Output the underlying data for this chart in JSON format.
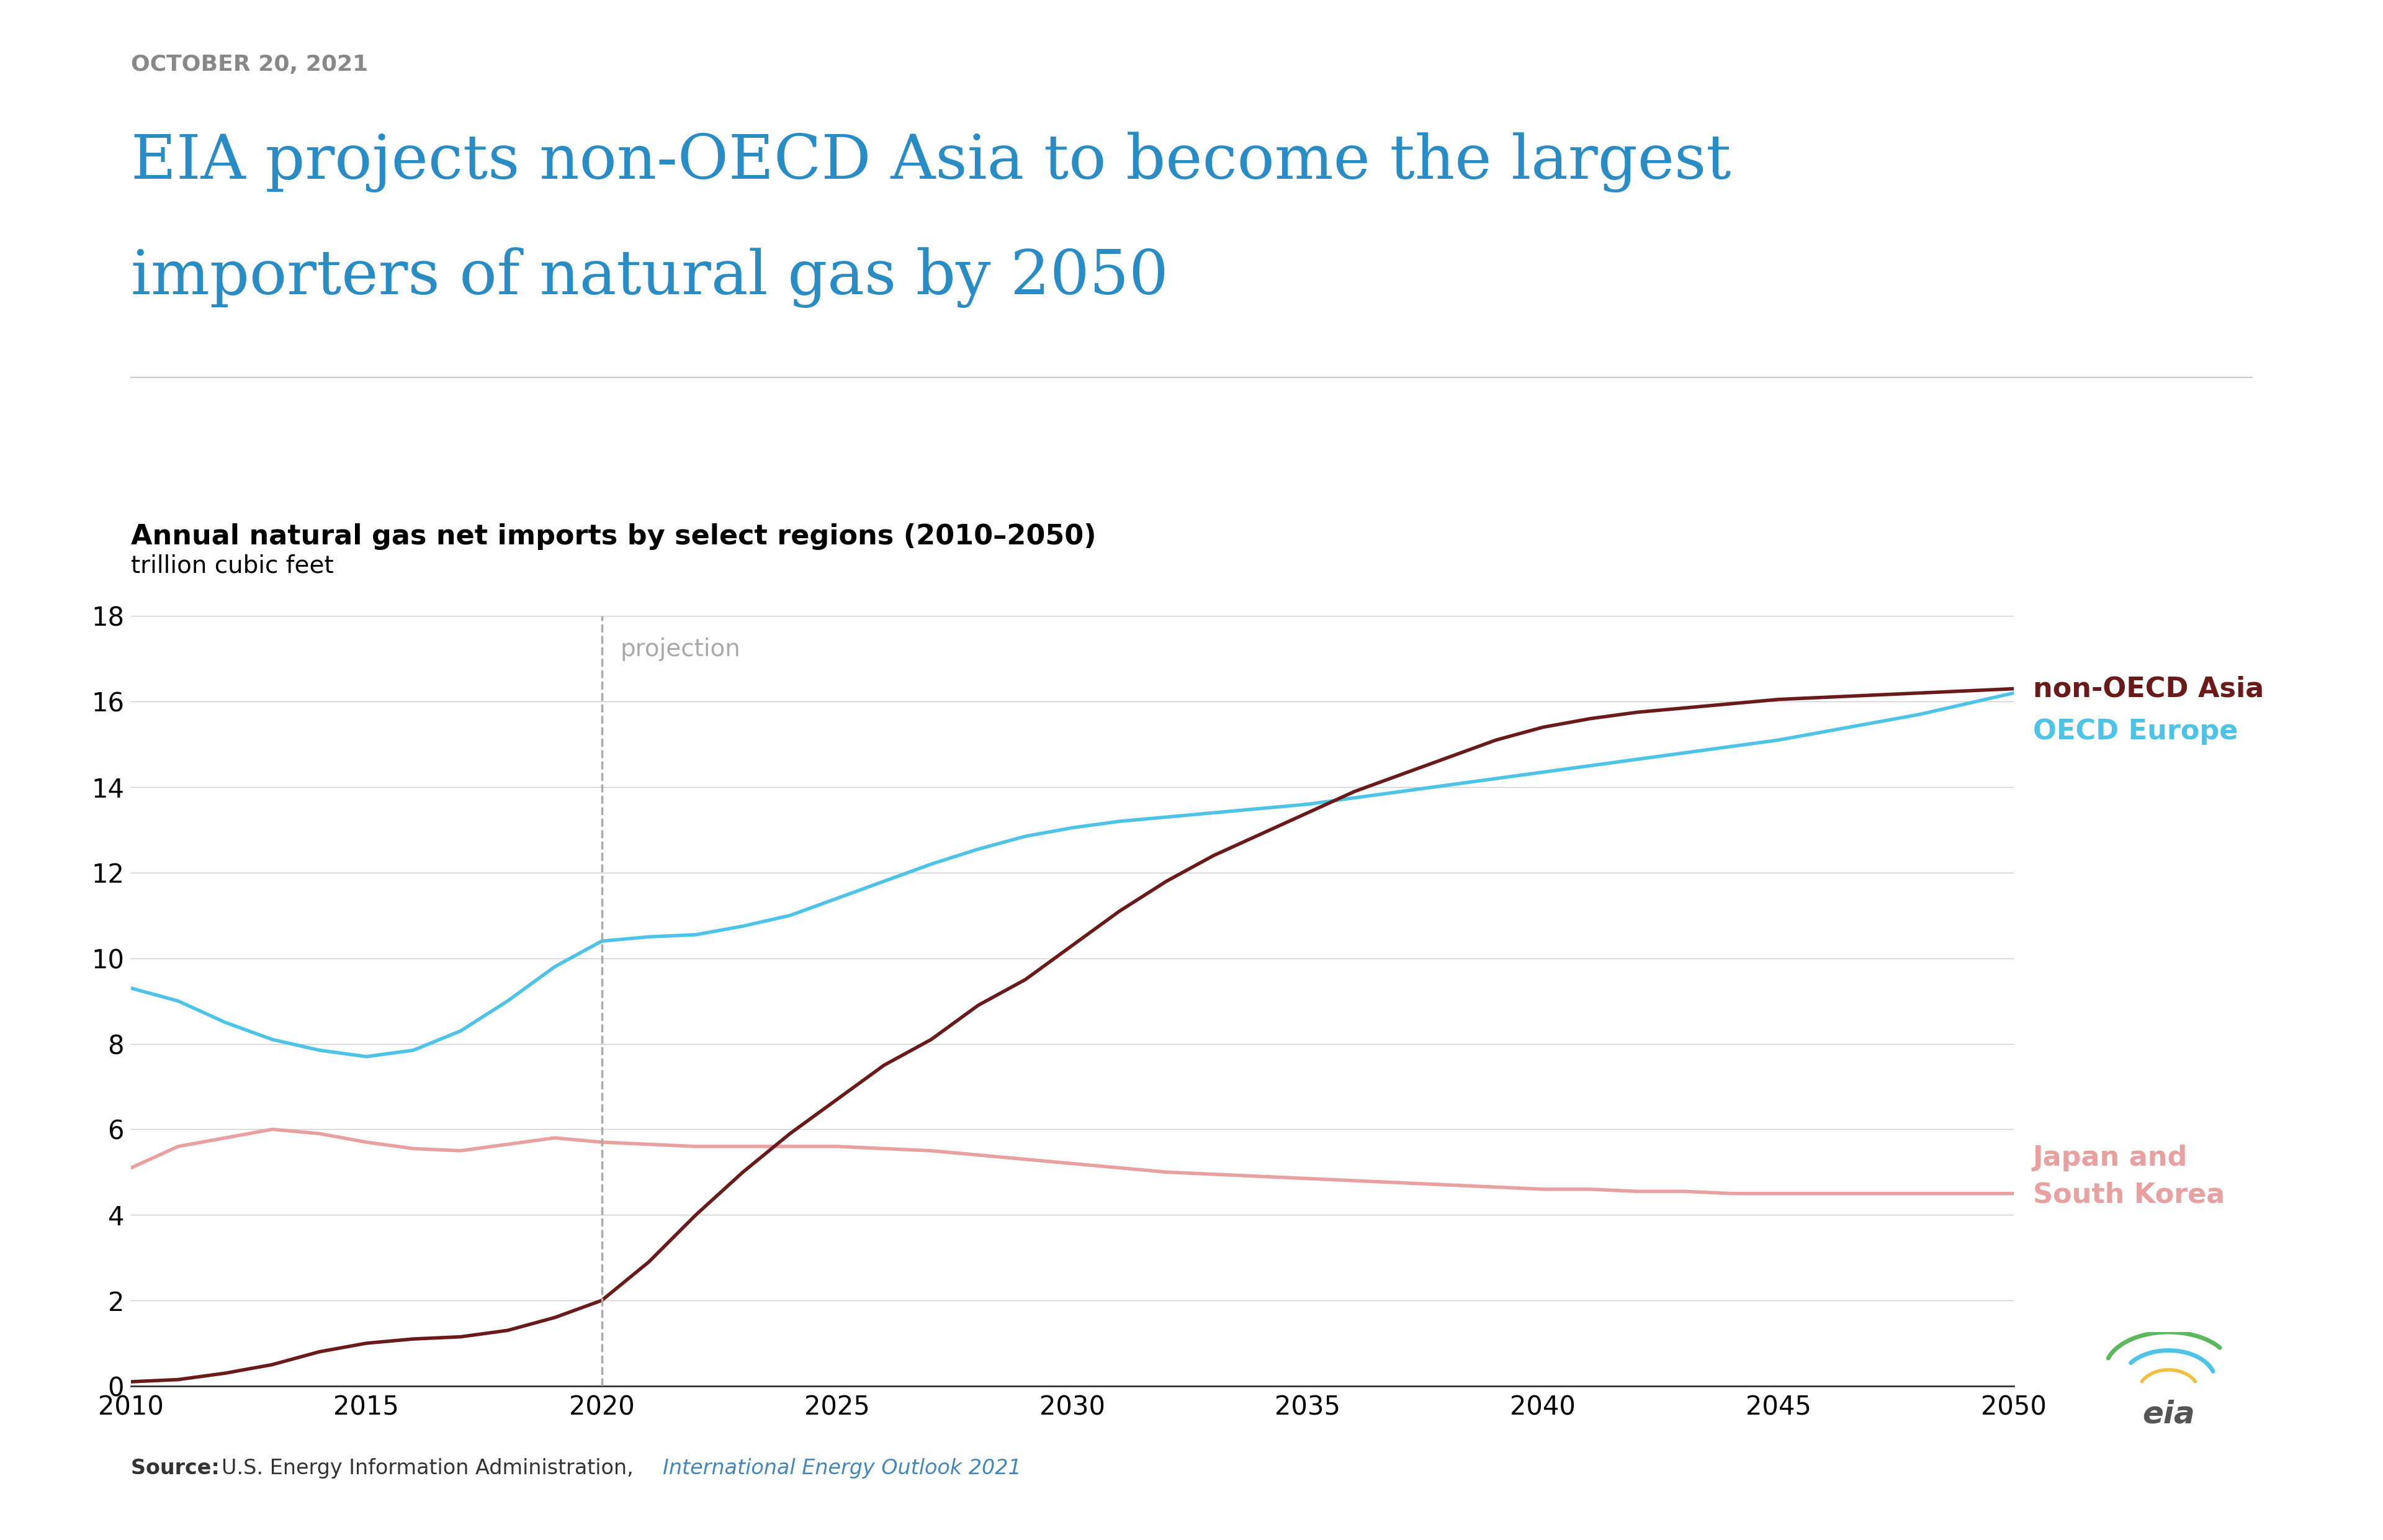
{
  "date": "OCTOBER 20, 2021",
  "title_line1": "EIA projects non-OECD Asia to become the largest",
  "title_line2": "importers of natural gas by 2050",
  "chart_title": "Annual natural gas net imports by select regions (2010–2050)",
  "chart_subtitle": "trillion cubic feet",
  "source_text": "Source: ",
  "source_bold_after": "U.S. Energy Information Administration, ",
  "source_italic": "International Energy Outlook 2021",
  "projection_label": "projection",
  "projection_year": 2020,
  "ylim": [
    0,
    18
  ],
  "yticks": [
    0,
    2,
    4,
    6,
    8,
    10,
    12,
    14,
    16,
    18
  ],
  "xlim": [
    2010,
    2050
  ],
  "xticks": [
    2010,
    2015,
    2020,
    2025,
    2030,
    2035,
    2040,
    2045,
    2050
  ],
  "non_oecd_asia_color": "#6b1a1a",
  "oecd_europe_color": "#4dc3e8",
  "japan_korea_color": "#e8a0a0",
  "non_oecd_asia_label": "non-OECD Asia",
  "oecd_europe_label": "OECD Europe",
  "japan_korea_label": "Japan and\nSouth Korea",
  "non_oecd_asia_x": [
    2010,
    2011,
    2012,
    2013,
    2014,
    2015,
    2016,
    2017,
    2018,
    2019,
    2020,
    2021,
    2022,
    2023,
    2024,
    2025,
    2026,
    2027,
    2028,
    2029,
    2030,
    2031,
    2032,
    2033,
    2034,
    2035,
    2036,
    2037,
    2038,
    2039,
    2040,
    2041,
    2042,
    2043,
    2044,
    2045,
    2046,
    2047,
    2048,
    2049,
    2050
  ],
  "non_oecd_asia_y": [
    0.1,
    0.15,
    0.3,
    0.5,
    0.8,
    1.0,
    1.1,
    1.15,
    1.3,
    1.6,
    2.0,
    2.9,
    4.0,
    5.0,
    5.9,
    6.7,
    7.5,
    8.1,
    8.9,
    9.5,
    10.3,
    11.1,
    11.8,
    12.4,
    12.9,
    13.4,
    13.9,
    14.3,
    14.7,
    15.1,
    15.4,
    15.6,
    15.75,
    15.85,
    15.95,
    16.05,
    16.1,
    16.15,
    16.2,
    16.25,
    16.3
  ],
  "oecd_europe_x": [
    2010,
    2011,
    2012,
    2013,
    2014,
    2015,
    2016,
    2017,
    2018,
    2019,
    2020,
    2021,
    2022,
    2023,
    2024,
    2025,
    2026,
    2027,
    2028,
    2029,
    2030,
    2031,
    2032,
    2033,
    2034,
    2035,
    2036,
    2037,
    2038,
    2039,
    2040,
    2041,
    2042,
    2043,
    2044,
    2045,
    2046,
    2047,
    2048,
    2049,
    2050
  ],
  "oecd_europe_y": [
    9.3,
    9.0,
    8.5,
    8.1,
    7.85,
    7.7,
    7.85,
    8.3,
    9.0,
    9.8,
    10.4,
    10.5,
    10.55,
    10.75,
    11.0,
    11.4,
    11.8,
    12.2,
    12.55,
    12.85,
    13.05,
    13.2,
    13.3,
    13.4,
    13.5,
    13.6,
    13.75,
    13.9,
    14.05,
    14.2,
    14.35,
    14.5,
    14.65,
    14.8,
    14.95,
    15.1,
    15.3,
    15.5,
    15.7,
    15.95,
    16.2
  ],
  "japan_korea_x": [
    2010,
    2011,
    2012,
    2013,
    2014,
    2015,
    2016,
    2017,
    2018,
    2019,
    2020,
    2021,
    2022,
    2023,
    2024,
    2025,
    2026,
    2027,
    2028,
    2029,
    2030,
    2031,
    2032,
    2033,
    2034,
    2035,
    2036,
    2037,
    2038,
    2039,
    2040,
    2041,
    2042,
    2043,
    2044,
    2045,
    2046,
    2047,
    2048,
    2049,
    2050
  ],
  "japan_korea_y": [
    5.1,
    5.6,
    5.8,
    6.0,
    5.9,
    5.7,
    5.55,
    5.5,
    5.65,
    5.8,
    5.7,
    5.65,
    5.6,
    5.6,
    5.6,
    5.6,
    5.55,
    5.5,
    5.4,
    5.3,
    5.2,
    5.1,
    5.0,
    4.95,
    4.9,
    4.85,
    4.8,
    4.75,
    4.7,
    4.65,
    4.6,
    4.6,
    4.55,
    4.55,
    4.5,
    4.5,
    4.5,
    4.5,
    4.5,
    4.5,
    4.5
  ],
  "background_color": "#ffffff",
  "grid_color": "#cccccc",
  "title_color": "#2a8cc4",
  "date_color": "#888888",
  "title_fontsize": 72,
  "date_fontsize": 26,
  "chart_title_fontsize": 32,
  "chart_subtitle_fontsize": 28,
  "tick_fontsize": 30,
  "legend_fontsize": 32,
  "projection_fontsize": 28,
  "source_fontsize": 24
}
